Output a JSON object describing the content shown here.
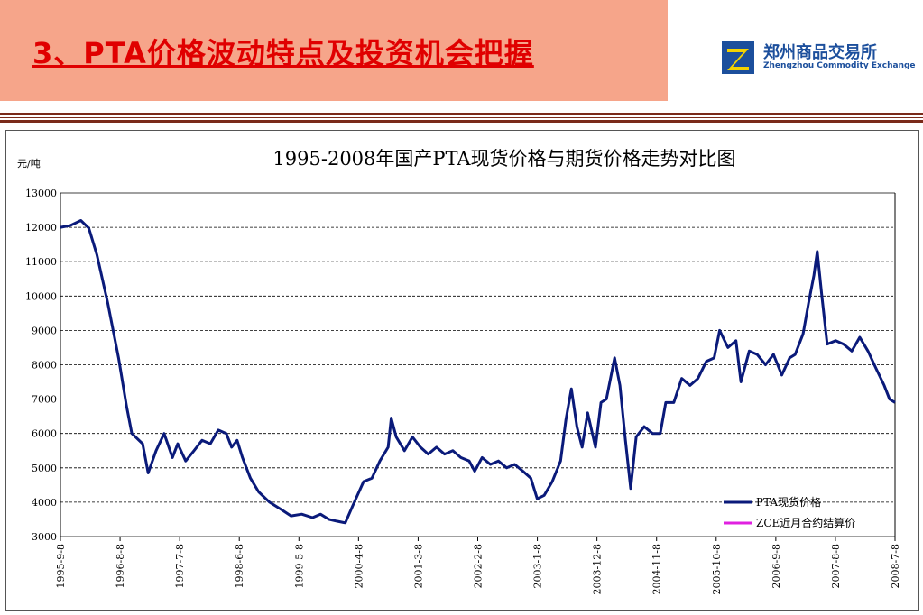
{
  "slide": {
    "title": "3、PTA价格波动特点及投资机会把握",
    "logo_cn": "郑州商品交易所",
    "logo_en": "Zhengzhou Commodity Exchange",
    "colors": {
      "banner": "#f6a58a",
      "title": "#e00000",
      "brand": "#1c4f9c"
    }
  },
  "chart_data": {
    "type": "line",
    "title": "1995-2008年国产PTA现货价格与期货价格走势对比图",
    "ylabel": "元/吨",
    "ylim": [
      3000,
      13000
    ],
    "yticks": [
      3000,
      4000,
      5000,
      6000,
      7000,
      8000,
      9000,
      10000,
      11000,
      12000,
      13000
    ],
    "x_tick_labels": [
      "1995-9-8",
      "1996-8-8",
      "1997-7-8",
      "1998-6-8",
      "1999-5-8",
      "2000-4-8",
      "2001-3-8",
      "2002-2-8",
      "2003-1-8",
      "2003-12-8",
      "2004-11-8",
      "2005-10-8",
      "2006-9-8",
      "2007-8-8",
      "2008-7-8"
    ],
    "xrange": [
      "1995-09-08",
      "2008-08-01"
    ],
    "grid": "horizontal dashed",
    "legend_position": "bottom-right",
    "series": [
      {
        "name": "PTA现货价格",
        "color": "#0a1a7a",
        "points": [
          [
            "1995-09-08",
            12000
          ],
          [
            "1995-11-01",
            12050
          ],
          [
            "1996-01-01",
            12200
          ],
          [
            "1996-02-15",
            11980
          ],
          [
            "1996-04-01",
            11200
          ],
          [
            "1996-06-01",
            9800
          ],
          [
            "1996-08-01",
            8200
          ],
          [
            "1996-09-15",
            6800
          ],
          [
            "1996-10-15",
            6000
          ],
          [
            "1996-12-15",
            5700
          ],
          [
            "1997-01-15",
            4850
          ],
          [
            "1997-03-01",
            5500
          ],
          [
            "1997-04-15",
            6000
          ],
          [
            "1997-06-01",
            5300
          ],
          [
            "1997-07-01",
            5700
          ],
          [
            "1997-08-15",
            5200
          ],
          [
            "1997-10-01",
            5500
          ],
          [
            "1997-11-15",
            5800
          ],
          [
            "1998-01-01",
            5700
          ],
          [
            "1998-02-15",
            6100
          ],
          [
            "1998-04-01",
            6000
          ],
          [
            "1998-05-01",
            5600
          ],
          [
            "1998-06-01",
            5800
          ],
          [
            "1998-07-01",
            5300
          ],
          [
            "1998-08-15",
            4700
          ],
          [
            "1998-10-01",
            4300
          ],
          [
            "1998-12-01",
            4000
          ],
          [
            "1999-02-01",
            3800
          ],
          [
            "1999-04-01",
            3600
          ],
          [
            "1999-06-01",
            3650
          ],
          [
            "1999-08-01",
            3550
          ],
          [
            "1999-09-15",
            3650
          ],
          [
            "1999-11-01",
            3500
          ],
          [
            "1999-12-15",
            3450
          ],
          [
            "2000-02-02",
            3400
          ],
          [
            "2000-03-15",
            3900
          ],
          [
            "2000-05-15",
            4600
          ],
          [
            "2000-07-01",
            4700
          ],
          [
            "2000-08-15",
            5200
          ],
          [
            "2000-10-01",
            5600
          ],
          [
            "2000-10-18",
            6450
          ],
          [
            "2000-11-15",
            5900
          ],
          [
            "2001-01-01",
            5500
          ],
          [
            "2001-02-15",
            5900
          ],
          [
            "2001-04-01",
            5600
          ],
          [
            "2001-05-15",
            5400
          ],
          [
            "2001-07-01",
            5600
          ],
          [
            "2001-08-15",
            5400
          ],
          [
            "2001-10-01",
            5500
          ],
          [
            "2001-11-15",
            5300
          ],
          [
            "2002-01-01",
            5200
          ],
          [
            "2002-02-01",
            4900
          ],
          [
            "2002-03-15",
            5300
          ],
          [
            "2002-05-01",
            5100
          ],
          [
            "2002-06-15",
            5200
          ],
          [
            "2002-08-01",
            5000
          ],
          [
            "2002-09-15",
            5100
          ],
          [
            "2002-11-01",
            4900
          ],
          [
            "2002-12-15",
            4700
          ],
          [
            "2003-01-20",
            4100
          ],
          [
            "2003-03-01",
            4200
          ],
          [
            "2003-04-15",
            4600
          ],
          [
            "2003-06-01",
            5200
          ],
          [
            "2003-07-01",
            6400
          ],
          [
            "2003-08-01",
            7300
          ],
          [
            "2003-09-01",
            6200
          ],
          [
            "2003-10-01",
            5600
          ],
          [
            "2003-11-01",
            6600
          ],
          [
            "2003-12-15",
            5600
          ],
          [
            "2004-01-15",
            6900
          ],
          [
            "2004-02-15",
            7000
          ],
          [
            "2004-04-01",
            8200
          ],
          [
            "2004-05-01",
            7400
          ],
          [
            "2004-06-01",
            5800
          ],
          [
            "2004-07-01",
            4400
          ],
          [
            "2004-08-01",
            5900
          ],
          [
            "2004-09-15",
            6200
          ],
          [
            "2004-11-01",
            6000
          ],
          [
            "2004-12-15",
            6000
          ],
          [
            "2005-01-15",
            6900
          ],
          [
            "2005-03-01",
            6900
          ],
          [
            "2005-04-15",
            7600
          ],
          [
            "2005-06-01",
            7400
          ],
          [
            "2005-07-15",
            7600
          ],
          [
            "2005-09-01",
            8100
          ],
          [
            "2005-10-15",
            8200
          ],
          [
            "2005-11-15",
            9000
          ],
          [
            "2006-01-01",
            8500
          ],
          [
            "2006-02-15",
            8700
          ],
          [
            "2006-03-15",
            7500
          ],
          [
            "2006-05-01",
            8400
          ],
          [
            "2006-06-15",
            8300
          ],
          [
            "2006-08-01",
            8000
          ],
          [
            "2006-09-15",
            8300
          ],
          [
            "2006-11-01",
            7700
          ],
          [
            "2006-12-15",
            8200
          ],
          [
            "2007-01-15",
            8300
          ],
          [
            "2007-03-01",
            8900
          ],
          [
            "2007-04-01",
            9800
          ],
          [
            "2007-05-01",
            10600
          ],
          [
            "2007-05-20",
            11300
          ],
          [
            "2007-06-15",
            10000
          ],
          [
            "2007-07-15",
            8600
          ],
          [
            "2007-09-01",
            8700
          ],
          [
            "2007-10-15",
            8600
          ],
          [
            "2007-12-01",
            8400
          ],
          [
            "2008-01-15",
            8800
          ],
          [
            "2008-03-01",
            8400
          ],
          [
            "2008-04-15",
            7900
          ],
          [
            "2008-06-01",
            7400
          ],
          [
            "2008-07-01",
            7000
          ],
          [
            "2008-08-01",
            6900
          ]
        ]
      },
      {
        "name": "ZCE近月合约结算价",
        "color": "#e020e0",
        "points": []
      }
    ]
  }
}
